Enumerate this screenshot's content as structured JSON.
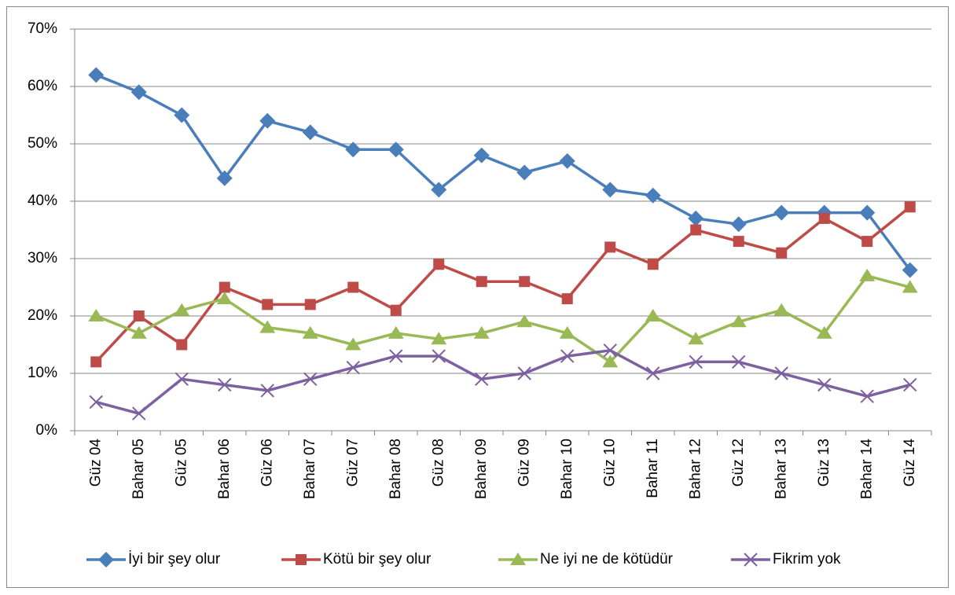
{
  "chart_data": {
    "type": "line",
    "categories": [
      "Güz 04",
      "Bahar 05",
      "Güz 05",
      "Bahar 06",
      "Güz 06",
      "Bahar 07",
      "Güz 07",
      "Bahar 08",
      "Güz 08",
      "Bahar 09",
      "Güz 09",
      "Bahar 10",
      "Güz 10",
      "Bahar 11",
      "Bahar 12",
      "Güz 12",
      "Bahar 13",
      "Güz 13",
      "Bahar 14",
      "Güz 14"
    ],
    "series": [
      {
        "name": "İyi bir şey olur",
        "color": "#4a7ebb",
        "marker": "diamond",
        "values": [
          62,
          59,
          55,
          44,
          54,
          52,
          49,
          49,
          42,
          48,
          45,
          47,
          42,
          41,
          37,
          36,
          38,
          38,
          38,
          28
        ]
      },
      {
        "name": "Kötü bir şey olur",
        "color": "#be4b48",
        "marker": "square",
        "values": [
          12,
          20,
          15,
          25,
          22,
          22,
          25,
          21,
          29,
          26,
          26,
          23,
          32,
          29,
          35,
          33,
          31,
          37,
          33,
          39
        ]
      },
      {
        "name": "Ne iyi ne de kötüdür",
        "color": "#98b954",
        "marker": "triangle",
        "values": [
          20,
          17,
          21,
          23,
          18,
          17,
          15,
          17,
          16,
          17,
          19,
          17,
          12,
          20,
          16,
          19,
          21,
          17,
          27,
          25
        ]
      },
      {
        "name": "Fikrim yok",
        "color": "#7d60a0",
        "marker": "x",
        "values": [
          5,
          3,
          9,
          8,
          7,
          9,
          11,
          13,
          13,
          9,
          10,
          13,
          14,
          10,
          12,
          12,
          10,
          8,
          6,
          8
        ]
      }
    ],
    "ylim": [
      0,
      70
    ],
    "yticks": [
      {
        "value": 0,
        "label": "0%"
      },
      {
        "value": 10,
        "label": "10%"
      },
      {
        "value": 20,
        "label": "20%"
      },
      {
        "value": 30,
        "label": "30%"
      },
      {
        "value": 40,
        "label": "40%"
      },
      {
        "value": 50,
        "label": "50%"
      },
      {
        "value": 60,
        "label": "60%"
      },
      {
        "value": 70,
        "label": "70%"
      }
    ],
    "grid": true,
    "legend": "bottom"
  }
}
